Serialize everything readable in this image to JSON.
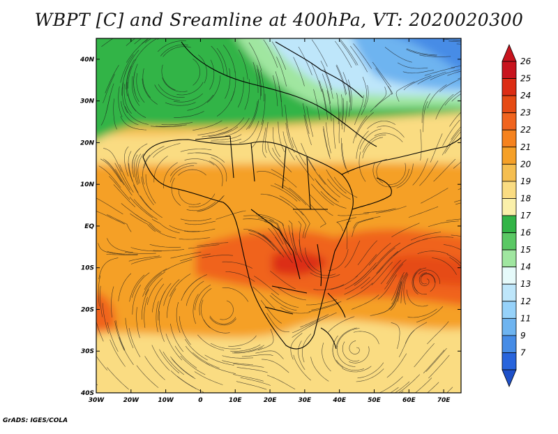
{
  "title": "WBPT [C] and Sreamline at 400hPa, VT: 2020020300",
  "footer": "GrADS: IGES/COLA",
  "map": {
    "lon_range": [
      -30,
      75
    ],
    "lat_range": [
      -40,
      45
    ],
    "lon_ticks": [
      {
        "value": -30,
        "label": "30W"
      },
      {
        "value": -20,
        "label": "20W"
      },
      {
        "value": -10,
        "label": "10W"
      },
      {
        "value": 0,
        "label": "0"
      },
      {
        "value": 10,
        "label": "10E"
      },
      {
        "value": 20,
        "label": "20E"
      },
      {
        "value": 30,
        "label": "30E"
      },
      {
        "value": 40,
        "label": "40E"
      },
      {
        "value": 50,
        "label": "50E"
      },
      {
        "value": 60,
        "label": "60E"
      },
      {
        "value": 70,
        "label": "70E"
      }
    ],
    "lat_ticks": [
      {
        "value": 40,
        "label": "40N"
      },
      {
        "value": 30,
        "label": "30N"
      },
      {
        "value": 20,
        "label": "20N"
      },
      {
        "value": 10,
        "label": "10N"
      },
      {
        "value": 0,
        "label": "EQ"
      },
      {
        "value": -10,
        "label": "10S"
      },
      {
        "value": -20,
        "label": "20S"
      },
      {
        "value": -30,
        "label": "30S"
      },
      {
        "value": -40,
        "label": "40S"
      }
    ]
  },
  "colorbar": {
    "levels": [
      {
        "label": "26",
        "color": "#c8141e"
      },
      {
        "label": "25",
        "color": "#dc2d14"
      },
      {
        "label": "24",
        "color": "#e64b14"
      },
      {
        "label": "23",
        "color": "#f0641e"
      },
      {
        "label": "22",
        "color": "#f5821e"
      },
      {
        "label": "21",
        "color": "#f5a028"
      },
      {
        "label": "20",
        "color": "#f5be50"
      },
      {
        "label": "19",
        "color": "#fadc82"
      },
      {
        "label": "18",
        "color": "#faf0aa"
      },
      {
        "label": "17",
        "color": "#32b446"
      },
      {
        "label": "16",
        "color": "#5ac864"
      },
      {
        "label": "15",
        "color": "#a0e6a0"
      },
      {
        "label": "14",
        "color": "#e6fafa"
      },
      {
        "label": "13",
        "color": "#bee6fa"
      },
      {
        "label": "12",
        "color": "#96d2fa"
      },
      {
        "label": "11",
        "color": "#6eb4f0"
      },
      {
        "label": "9",
        "color": "#468ce6"
      },
      {
        "label": "7",
        "color": "#2864dc"
      }
    ],
    "bottom_color": "#1e50c8"
  }
}
